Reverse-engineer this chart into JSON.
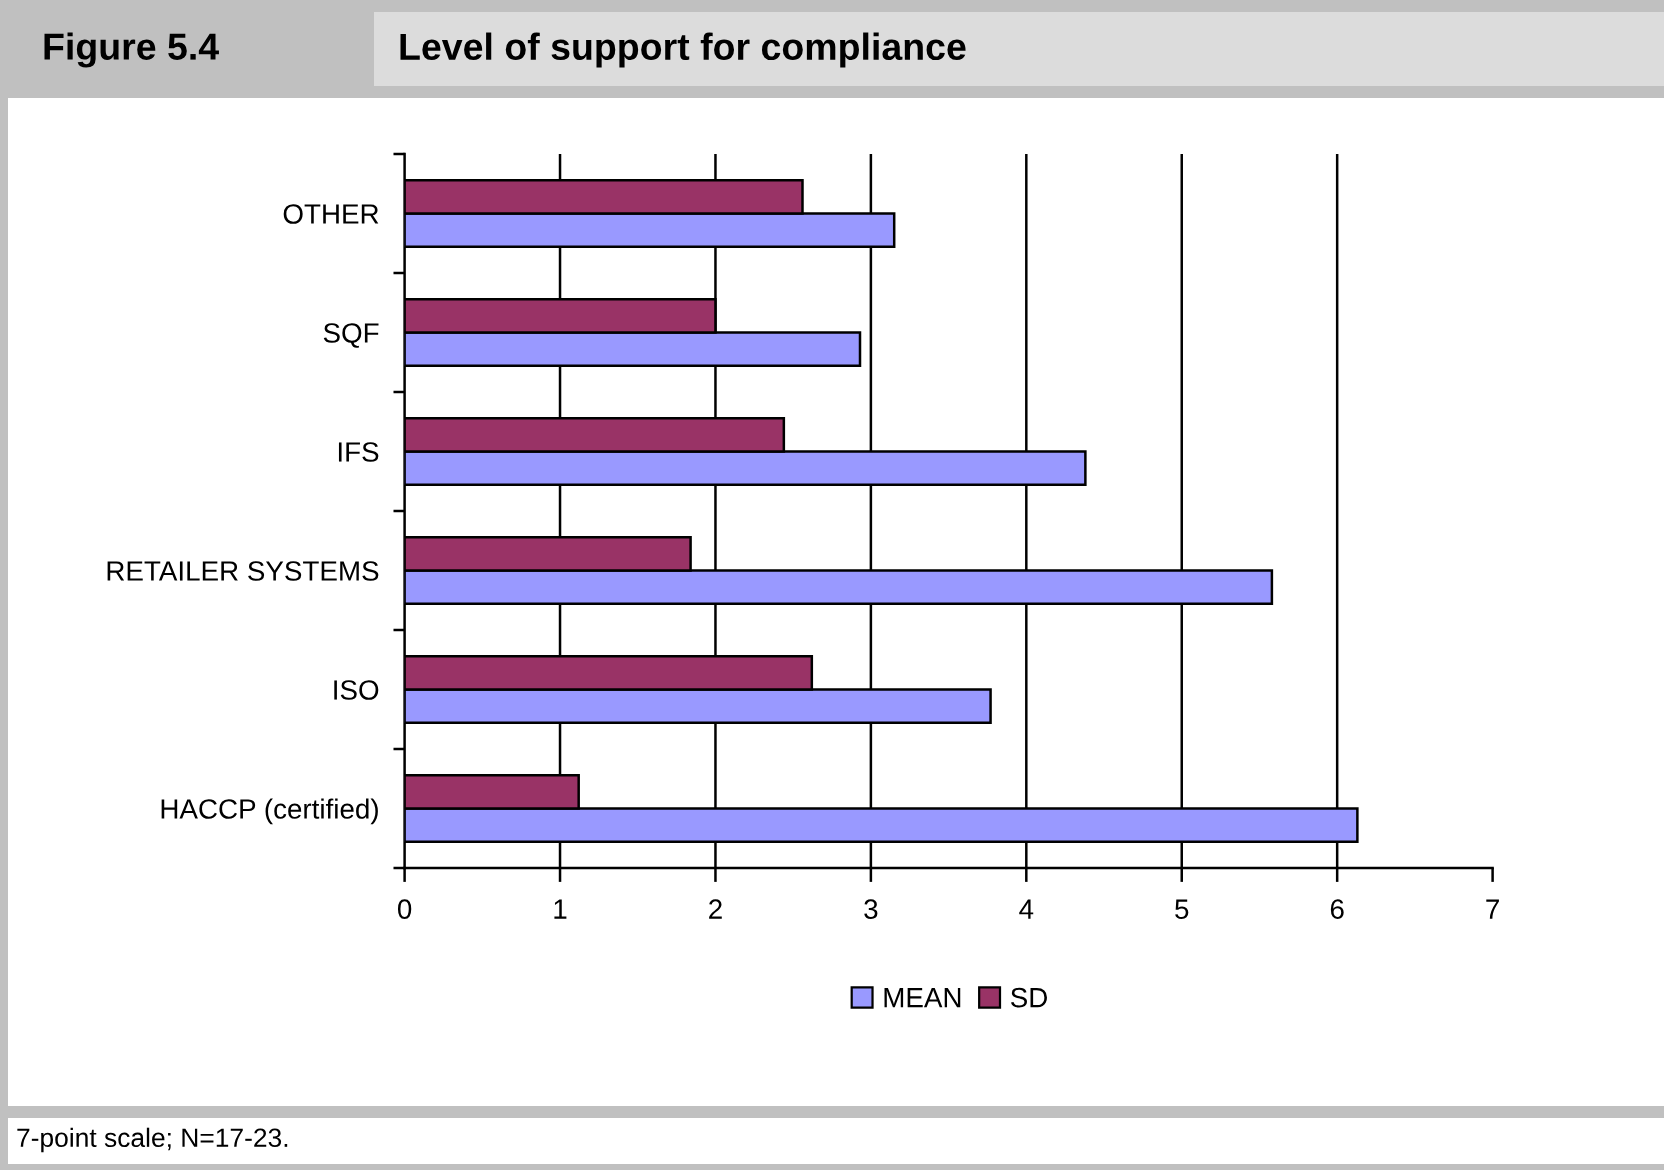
{
  "chart_data": {
    "type": "bar",
    "orientation": "horizontal",
    "title": "Level of support for compliance",
    "categories": [
      "OTHER",
      "SQF",
      "IFS",
      "RETAILER SYSTEMS",
      "ISO",
      "HACCP (certified)"
    ],
    "series": [
      {
        "name": "MEAN",
        "color": "#9999ff",
        "values": [
          3.15,
          2.93,
          4.38,
          5.58,
          3.77,
          6.13
        ]
      },
      {
        "name": "SD",
        "color": "#993366",
        "values": [
          2.56,
          2.0,
          2.44,
          1.84,
          2.62,
          1.12
        ]
      }
    ],
    "xlim": [
      0,
      7
    ],
    "xticks": [
      0,
      1,
      2,
      3,
      4,
      5,
      6,
      7
    ],
    "grid": "x",
    "legend": "bottom",
    "annotations": [
      "Figure 5.4",
      "7-point scale; N=17-23."
    ]
  }
}
